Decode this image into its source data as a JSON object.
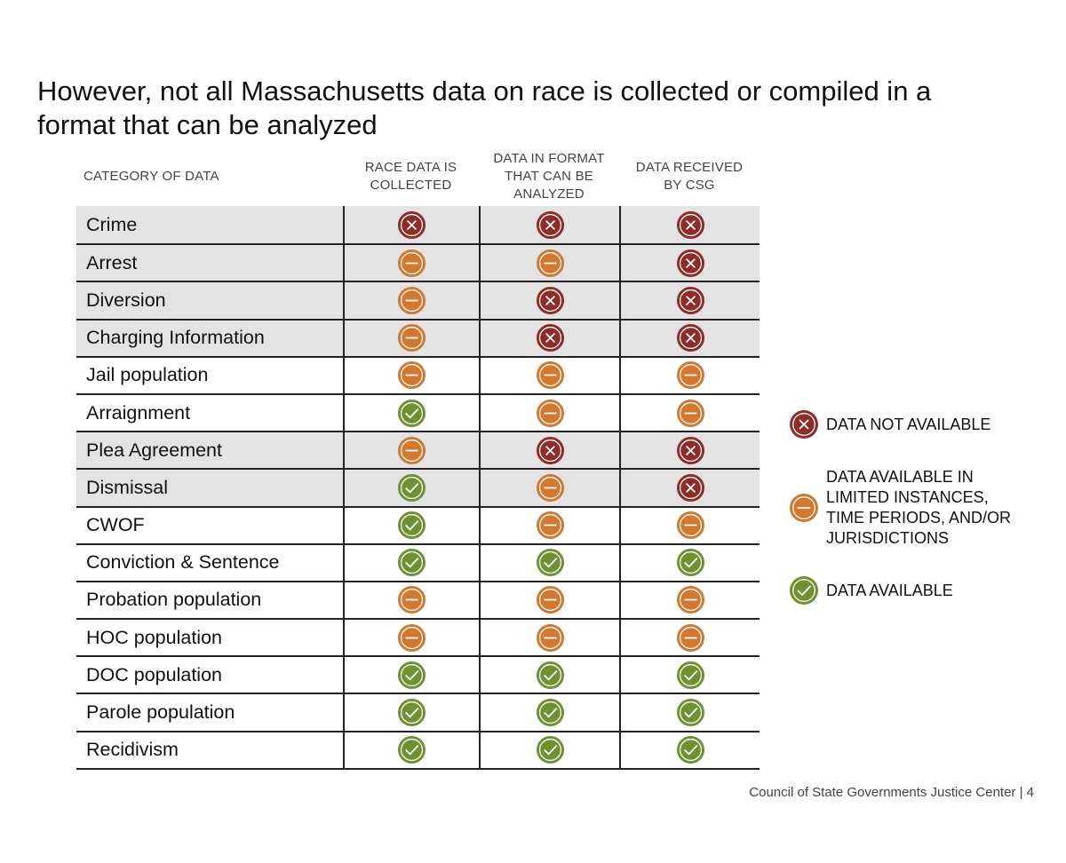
{
  "title": "However, not all Massachusetts data on race is collected or compiled in a format that can be analyzed",
  "colors": {
    "not_available": "#8e2c27",
    "limited": "#d2782f",
    "available": "#6e9232",
    "shaded_row": "#e3e3e3"
  },
  "table": {
    "headers": {
      "category": "CATEGORY OF DATA",
      "collected": "RACE DATA IS\nCOLLECTED",
      "format": "DATA IN FORMAT\nTHAT CAN BE\nANALYZED",
      "received": "DATA RECEIVED\nBY CSG"
    },
    "rows": [
      {
        "category": "Crime",
        "collected": "not_available",
        "format": "not_available",
        "received": "not_available",
        "shaded": true
      },
      {
        "category": "Arrest",
        "collected": "limited",
        "format": "limited",
        "received": "not_available",
        "shaded": true
      },
      {
        "category": "Diversion",
        "collected": "limited",
        "format": "not_available",
        "received": "not_available",
        "shaded": true
      },
      {
        "category": "Charging Information",
        "collected": "limited",
        "format": "not_available",
        "received": "not_available",
        "shaded": true
      },
      {
        "category": "Jail population",
        "collected": "limited",
        "format": "limited",
        "received": "limited",
        "shaded": false
      },
      {
        "category": "Arraignment",
        "collected": "available",
        "format": "limited",
        "received": "limited",
        "shaded": false
      },
      {
        "category": "Plea Agreement",
        "collected": "limited",
        "format": "not_available",
        "received": "not_available",
        "shaded": true
      },
      {
        "category": "Dismissal",
        "collected": "available",
        "format": "limited",
        "received": "not_available",
        "shaded": true
      },
      {
        "category": "CWOF",
        "collected": "available",
        "format": "limited",
        "received": "limited",
        "shaded": false
      },
      {
        "category": "Conviction & Sentence",
        "collected": "available",
        "format": "available",
        "received": "available",
        "shaded": false
      },
      {
        "category": "Probation population",
        "collected": "limited",
        "format": "limited",
        "received": "limited",
        "shaded": false
      },
      {
        "category": "HOC population",
        "collected": "limited",
        "format": "limited",
        "received": "limited",
        "shaded": false
      },
      {
        "category": "DOC population",
        "collected": "available",
        "format": "available",
        "received": "available",
        "shaded": false
      },
      {
        "category": "Parole population",
        "collected": "available",
        "format": "available",
        "received": "available",
        "shaded": false
      },
      {
        "category": "Recidivism",
        "collected": "available",
        "format": "available",
        "received": "available",
        "shaded": false
      }
    ]
  },
  "legend": {
    "not_available": {
      "label": "DATA NOT AVAILABLE",
      "icon": "x-circle-icon"
    },
    "limited": {
      "label": "DATA AVAILABLE IN\nLIMITED INSTANCES,\nTIME PERIODS, AND/OR\nJURISDICTIONS",
      "icon": "minus-circle-icon"
    },
    "available": {
      "label": "DATA AVAILABLE",
      "icon": "check-circle-icon"
    }
  },
  "footer": "Council of State Governments Justice Center | 4"
}
